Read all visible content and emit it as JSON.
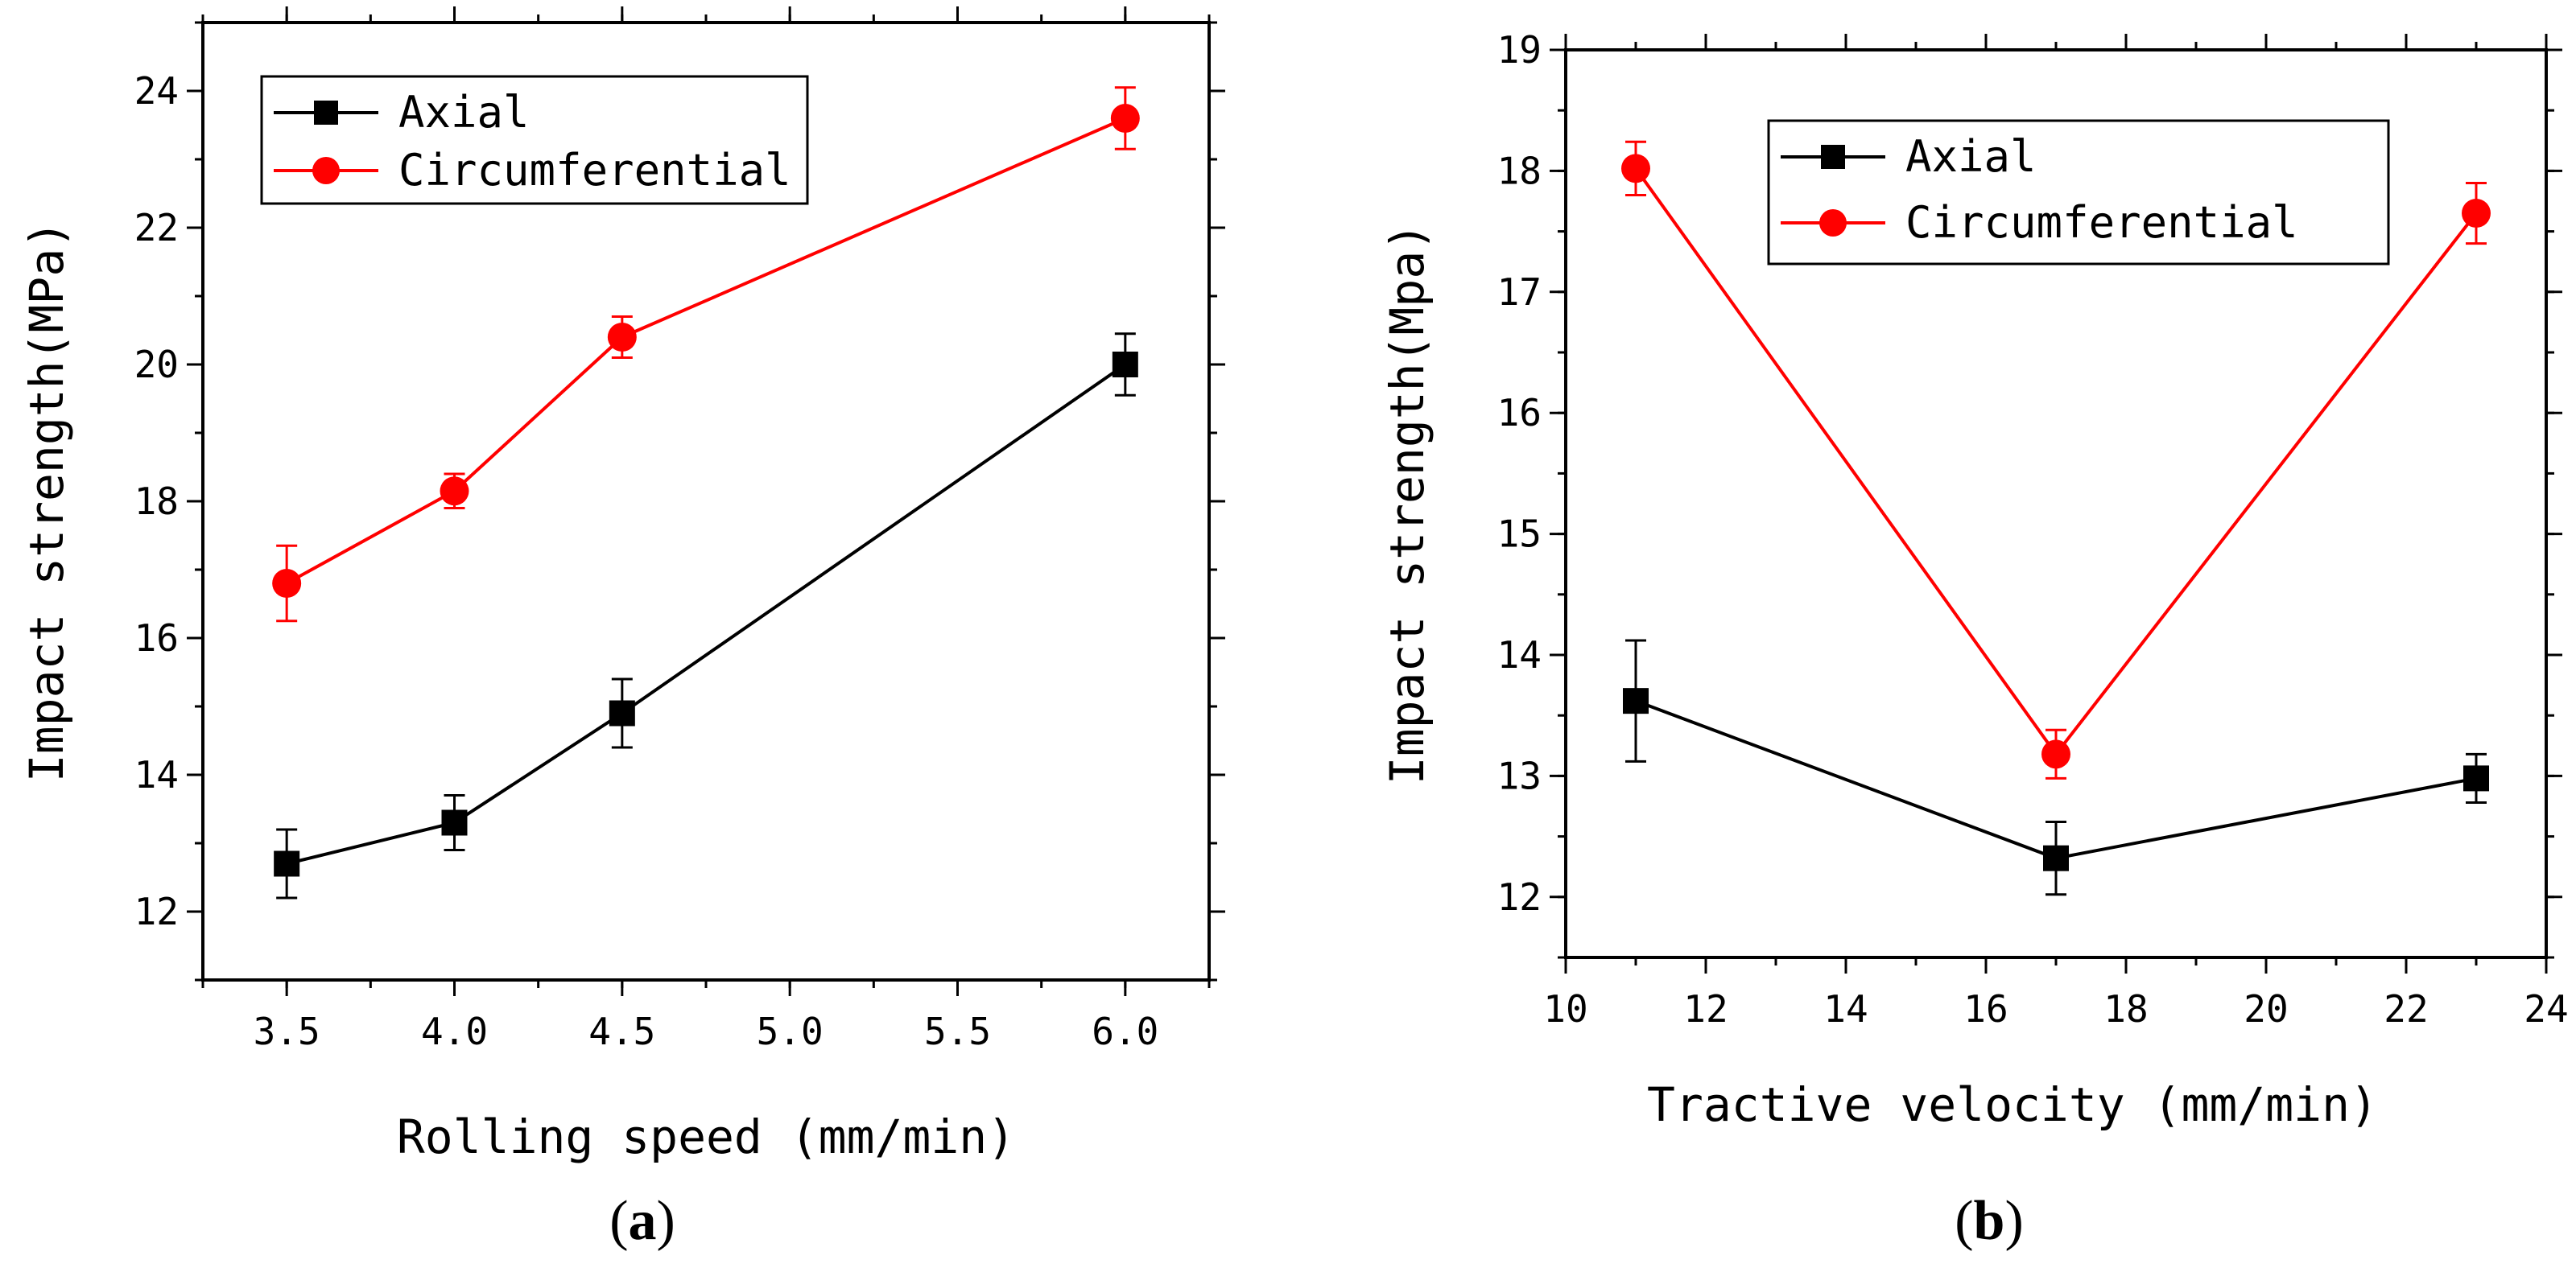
{
  "chart_data": [
    {
      "type": "line",
      "panel_label": "(a)",
      "xlabel": "Rolling speed (mm/min)",
      "ylabel": "Impact strength(MPa)",
      "xlim": [
        3.25,
        6.25
      ],
      "ylim": [
        11,
        25
      ],
      "x_ticks": [
        "3.5",
        "4.0",
        "4.5",
        "5.0",
        "5.5",
        "6.0"
      ],
      "y_ticks": [
        "12",
        "14",
        "16",
        "18",
        "20",
        "22",
        "24"
      ],
      "legend_position": "top-left",
      "grid": false,
      "series": [
        {
          "name": "Axial",
          "color": "#000000",
          "marker": "square",
          "x": [
            3.5,
            4.0,
            4.5,
            6.0
          ],
          "y": [
            12.7,
            13.3,
            14.9,
            20.0
          ],
          "error": [
            0.5,
            0.4,
            0.5,
            0.45
          ]
        },
        {
          "name": "Circumferential",
          "color": "#ff0000",
          "marker": "circle",
          "x": [
            3.5,
            4.0,
            4.5,
            6.0
          ],
          "y": [
            16.8,
            18.15,
            20.4,
            23.6
          ],
          "error": [
            0.55,
            0.25,
            0.3,
            0.45
          ]
        }
      ]
    },
    {
      "type": "line",
      "panel_label": "(b)",
      "xlabel": "Tractive velocity (mm/min)",
      "ylabel": "Impact strength(Mpa)",
      "xlim": [
        10,
        24
      ],
      "ylim": [
        11.5,
        19
      ],
      "x_ticks": [
        "10",
        "12",
        "14",
        "16",
        "18",
        "20",
        "22",
        "24"
      ],
      "y_ticks": [
        "12",
        "13",
        "14",
        "15",
        "16",
        "17",
        "18",
        "19"
      ],
      "legend_position": "top-center",
      "grid": false,
      "series": [
        {
          "name": "Axial",
          "color": "#000000",
          "marker": "square",
          "x": [
            11,
            17,
            23
          ],
          "y": [
            13.62,
            12.32,
            12.98
          ],
          "error": [
            0.5,
            0.3,
            0.2
          ]
        },
        {
          "name": "Circumferential",
          "color": "#ff0000",
          "marker": "circle",
          "x": [
            11,
            17,
            23
          ],
          "y": [
            18.02,
            13.18,
            17.65
          ],
          "error": [
            0.22,
            0.2,
            0.25
          ]
        }
      ]
    }
  ]
}
